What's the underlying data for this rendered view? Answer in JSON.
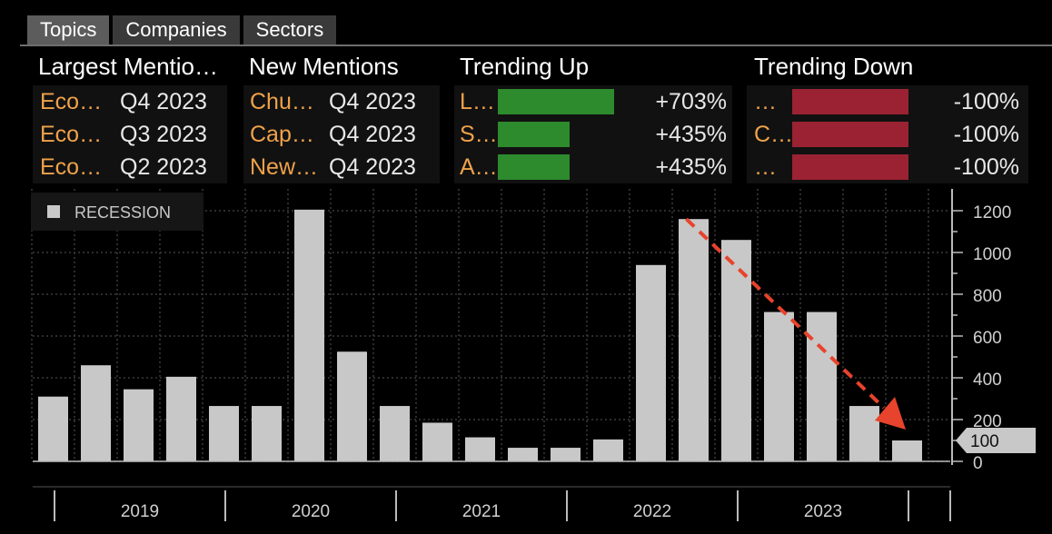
{
  "tabs": [
    {
      "label": "Topics",
      "active": true
    },
    {
      "label": "Companies",
      "active": false
    },
    {
      "label": "Sectors",
      "active": false
    }
  ],
  "headers": {
    "largest": "Largest Mentio…",
    "new": "New Mentions",
    "up": "Trending Up",
    "down": "Trending Down"
  },
  "largest_mentions": [
    {
      "name": "Eco…",
      "period": "Q4 2023"
    },
    {
      "name": "Eco…",
      "period": "Q3 2023"
    },
    {
      "name": "Eco…",
      "period": "Q2 2023"
    }
  ],
  "new_mentions": [
    {
      "name": "Chu…",
      "period": "Q4 2023"
    },
    {
      "name": "Cap…",
      "period": "Q4 2023"
    },
    {
      "name": "New…",
      "period": "Q4 2023"
    }
  ],
  "trending_up": [
    {
      "name": "L…",
      "pct": "+703%",
      "value": 703
    },
    {
      "name": "S…",
      "pct": "+435%",
      "value": 435
    },
    {
      "name": "A…",
      "pct": "+435%",
      "value": 435
    }
  ],
  "trending_down": [
    {
      "name": "…",
      "pct": "-100%",
      "value": 100
    },
    {
      "name": "C…",
      "pct": "-100%",
      "value": 100
    },
    {
      "name": "…",
      "pct": "-100%",
      "value": 100
    }
  ],
  "colors": {
    "bar": "#c8c8c8",
    "green": "#2d8a2d",
    "red": "#9b2232",
    "orange": "#f0a24a",
    "arrow": "#e8432c"
  },
  "chart_data": {
    "type": "bar",
    "legend": "RECESSION",
    "legend_position": "top-left",
    "years": [
      "2019",
      "2020",
      "2021",
      "2022",
      "2023"
    ],
    "values": [
      310,
      460,
      345,
      405,
      265,
      265,
      1205,
      525,
      265,
      185,
      115,
      65,
      65,
      105,
      940,
      1160,
      1060,
      715,
      715,
      265,
      100
    ],
    "yticks": [
      0,
      200,
      400,
      600,
      800,
      1000,
      1200
    ],
    "ylim": [
      0,
      1270
    ],
    "last_value_label": "100",
    "annotation": "dashed red trend arrow from 2022 peak down to latest quarter"
  }
}
